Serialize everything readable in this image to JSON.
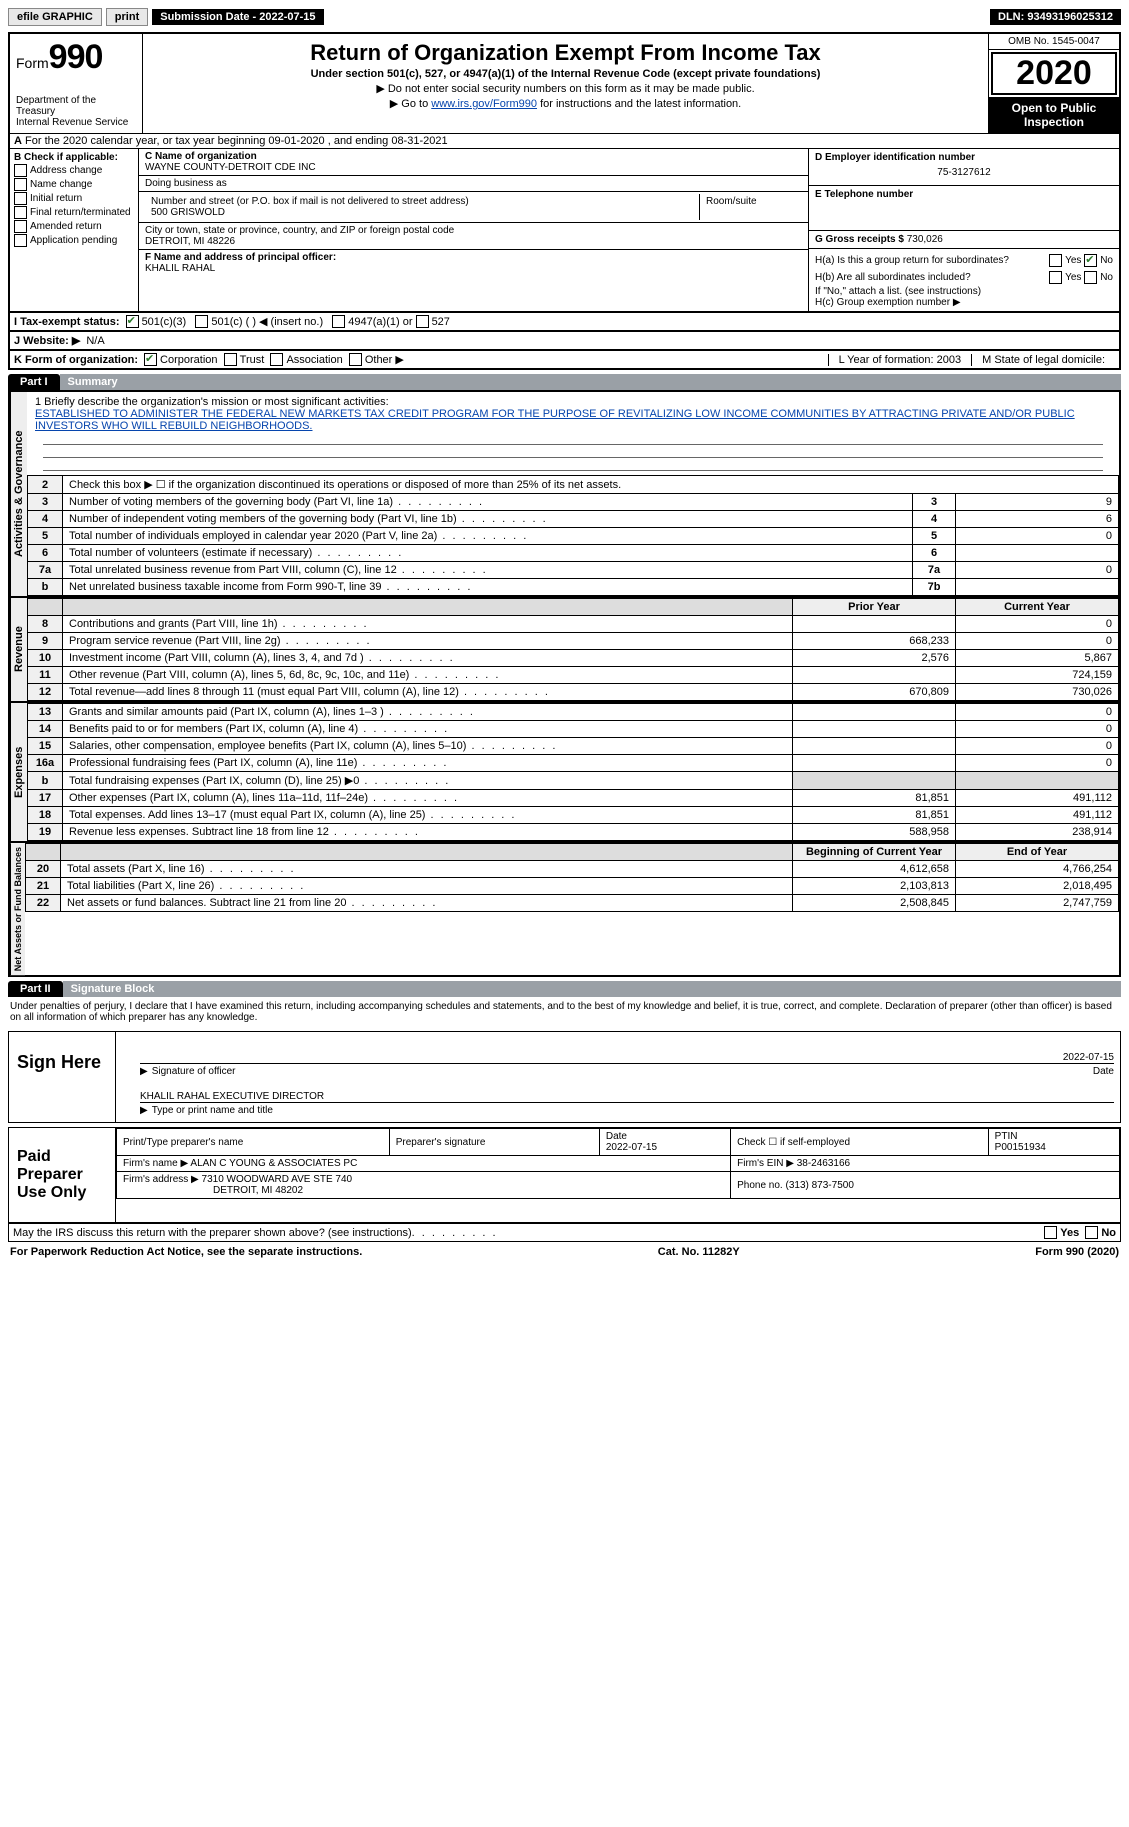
{
  "topbar": {
    "efile": "efile GRAPHIC",
    "print": "print",
    "sub_label": "Submission Date - 2022-07-15",
    "dln_label": "DLN: 93493196025312"
  },
  "header": {
    "form_label": "Form",
    "form_num": "990",
    "dept": "Department of the Treasury\nInternal Revenue Service",
    "title": "Return of Organization Exempt From Income Tax",
    "sub": "Under section 501(c), 527, or 4947(a)(1) of the Internal Revenue Code (except private foundations)",
    "inst1": "▶ Do not enter social security numbers on this form as it may be made public.",
    "inst2_pre": "▶ Go to ",
    "inst2_link": "www.irs.gov/Form990",
    "inst2_post": " for instructions and the latest information.",
    "omb": "OMB No. 1545-0047",
    "year": "2020",
    "open": "Open to Public Inspection"
  },
  "line_a": "For the 2020 calendar year, or tax year beginning 09-01-2020   , and ending 08-31-2021",
  "col_b": {
    "title": "B Check if applicable:",
    "opts": [
      "Address change",
      "Name change",
      "Initial return",
      "Final return/terminated",
      "Amended return",
      "Application pending"
    ]
  },
  "boxes": {
    "c_label": "C Name of organization",
    "c_val": "WAYNE COUNTY-DETROIT CDE INC",
    "dba": "Doing business as",
    "addr_label": "Number and street (or P.O. box if mail is not delivered to street address)",
    "addr_val": "500 GRISWOLD",
    "room": "Room/suite",
    "city_label": "City or town, state or province, country, and ZIP or foreign postal code",
    "city_val": "DETROIT, MI  48226",
    "f_label": "F Name and address of principal officer:",
    "f_val": "KHALIL RAHAL"
  },
  "col_right": {
    "d_label": "D Employer identification number",
    "d_val": "75-3127612",
    "e_label": "E Telephone number",
    "g_label": "G Gross receipts $",
    "g_val": "730,026",
    "ha": "H(a)  Is this a group return for subordinates?",
    "hb": "H(b)  Are all subordinates included?",
    "hb_note": "If \"No,\" attach a list. (see instructions)",
    "hc": "H(c)  Group exemption number ▶",
    "yes": "Yes",
    "no": "No"
  },
  "status_row": {
    "i": "I   Tax-exempt status:",
    "o1": "501(c)(3)",
    "o2": "501(c) (  ) ◀ (insert no.)",
    "o3": "4947(a)(1) or",
    "o4": "527"
  },
  "j_row": {
    "lbl": "J   Website: ▶",
    "val": "N/A"
  },
  "k_row": {
    "lbl": "K Form of organization:",
    "o1": "Corporation",
    "o2": "Trust",
    "o3": "Association",
    "o4": "Other ▶",
    "l": "L Year of formation: 2003",
    "m": "M State of legal domicile:"
  },
  "part1": {
    "tag": "Part I",
    "title": "Summary"
  },
  "mission": {
    "q": "1   Briefly describe the organization's mission or most significant activities:",
    "text": "ESTABLISHED TO ADMINISTER THE FEDERAL NEW MARKETS TAX CREDIT PROGRAM FOR THE PURPOSE OF REVITALIZING LOW INCOME COMMUNITIES BY ATTRACTING PRIVATE AND/OR PUBLIC INVESTORS WHO WILL REBUILD NEIGHBORHOODS."
  },
  "gov_side": "Activities & Governance",
  "gov_rows": [
    {
      "n": "2",
      "desc": "Check this box ▶ ☐ if the organization discontinued its operations or disposed of more than 25% of its net assets.",
      "k": "",
      "v": ""
    },
    {
      "n": "3",
      "desc": "Number of voting members of the governing body (Part VI, line 1a)",
      "k": "3",
      "v": "9"
    },
    {
      "n": "4",
      "desc": "Number of independent voting members of the governing body (Part VI, line 1b)",
      "k": "4",
      "v": "6"
    },
    {
      "n": "5",
      "desc": "Total number of individuals employed in calendar year 2020 (Part V, line 2a)",
      "k": "5",
      "v": "0"
    },
    {
      "n": "6",
      "desc": "Total number of volunteers (estimate if necessary)",
      "k": "6",
      "v": ""
    },
    {
      "n": "7a",
      "desc": "Total unrelated business revenue from Part VIII, column (C), line 12",
      "k": "7a",
      "v": "0"
    },
    {
      "n": "b",
      "desc": "Net unrelated business taxable income from Form 990-T, line 39",
      "k": "7b",
      "v": ""
    }
  ],
  "rev_side": "Revenue",
  "rev_head": {
    "py": "Prior Year",
    "cy": "Current Year"
  },
  "rev_rows": [
    {
      "n": "8",
      "desc": "Contributions and grants (Part VIII, line 1h)",
      "py": "",
      "cy": "0"
    },
    {
      "n": "9",
      "desc": "Program service revenue (Part VIII, line 2g)",
      "py": "668,233",
      "cy": "0"
    },
    {
      "n": "10",
      "desc": "Investment income (Part VIII, column (A), lines 3, 4, and 7d )",
      "py": "2,576",
      "cy": "5,867"
    },
    {
      "n": "11",
      "desc": "Other revenue (Part VIII, column (A), lines 5, 6d, 8c, 9c, 10c, and 11e)",
      "py": "",
      "cy": "724,159"
    },
    {
      "n": "12",
      "desc": "Total revenue—add lines 8 through 11 (must equal Part VIII, column (A), line 12)",
      "py": "670,809",
      "cy": "730,026"
    }
  ],
  "exp_side": "Expenses",
  "exp_rows": [
    {
      "n": "13",
      "desc": "Grants and similar amounts paid (Part IX, column (A), lines 1–3 )",
      "py": "",
      "cy": "0"
    },
    {
      "n": "14",
      "desc": "Benefits paid to or for members (Part IX, column (A), line 4)",
      "py": "",
      "cy": "0"
    },
    {
      "n": "15",
      "desc": "Salaries, other compensation, employee benefits (Part IX, column (A), lines 5–10)",
      "py": "",
      "cy": "0"
    },
    {
      "n": "16a",
      "desc": "Professional fundraising fees (Part IX, column (A), line 11e)",
      "py": "",
      "cy": "0"
    },
    {
      "n": "b",
      "desc": "Total fundraising expenses (Part IX, column (D), line 25) ▶0",
      "py": "grey",
      "cy": "grey"
    },
    {
      "n": "17",
      "desc": "Other expenses (Part IX, column (A), lines 11a–11d, 11f–24e)",
      "py": "81,851",
      "cy": "491,112"
    },
    {
      "n": "18",
      "desc": "Total expenses. Add lines 13–17 (must equal Part IX, column (A), line 25)",
      "py": "81,851",
      "cy": "491,112"
    },
    {
      "n": "19",
      "desc": "Revenue less expenses. Subtract line 18 from line 12",
      "py": "588,958",
      "cy": "238,914"
    }
  ],
  "net_side": "Net Assets or Fund Balances",
  "net_head": {
    "py": "Beginning of Current Year",
    "cy": "End of Year"
  },
  "net_rows": [
    {
      "n": "20",
      "desc": "Total assets (Part X, line 16)",
      "py": "4,612,658",
      "cy": "4,766,254"
    },
    {
      "n": "21",
      "desc": "Total liabilities (Part X, line 26)",
      "py": "2,103,813",
      "cy": "2,018,495"
    },
    {
      "n": "22",
      "desc": "Net assets or fund balances. Subtract line 21 from line 20",
      "py": "2,508,845",
      "cy": "2,747,759"
    }
  ],
  "part2": {
    "tag": "Part II",
    "title": "Signature Block"
  },
  "disclaim": "Under penalties of perjury, I declare that I have examined this return, including accompanying schedules and statements, and to the best of my knowledge and belief, it is true, correct, and complete. Declaration of preparer (other than officer) is based on all information of which preparer has any knowledge.",
  "sign": {
    "label": "Sign Here",
    "date": "2022-07-15",
    "sig_of": "Signature of officer",
    "date_lbl": "Date",
    "name": "KHALIL RAHAL  EXECUTIVE DIRECTOR",
    "name_lbl": "Type or print name and title"
  },
  "prep": {
    "label": "Paid Preparer Use Only",
    "h1": "Print/Type preparer's name",
    "h2": "Preparer's signature",
    "h3": "Date",
    "h3v": "2022-07-15",
    "h4": "Check ☐ if self-employed",
    "h5": "PTIN",
    "h5v": "P00151934",
    "firm_lbl": "Firm's name    ▶",
    "firm": "ALAN C YOUNG & ASSOCIATES PC",
    "ein_lbl": "Firm's EIN ▶",
    "ein": "38-2463166",
    "addr_lbl": "Firm's address ▶",
    "addr": "7310 WOODWARD AVE STE 740",
    "addr2": "DETROIT, MI  48202",
    "phone_lbl": "Phone no.",
    "phone": "(313) 873-7500"
  },
  "may_irs": "May the IRS discuss this return with the preparer shown above? (see instructions)",
  "footer": {
    "l": "For Paperwork Reduction Act Notice, see the separate instructions.",
    "m": "Cat. No. 11282Y",
    "r": "Form 990 (2020)"
  }
}
